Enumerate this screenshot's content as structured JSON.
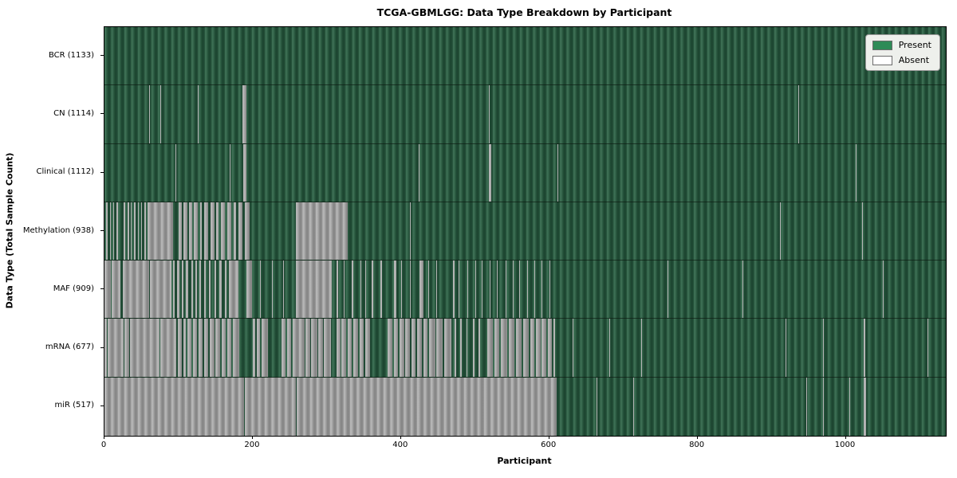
{
  "title": "TCGA-GBMLGG: Data Type Breakdown by Participant",
  "axes": {
    "xlabel": "Participant",
    "ylabel": "Data Type (Total Sample Count)",
    "x_ticks": [
      0,
      200,
      400,
      600,
      800,
      1000
    ],
    "x_max": 1135
  },
  "legend": {
    "entries": [
      {
        "label": "Present",
        "color": "#2e8b57"
      },
      {
        "label": "Absent",
        "color": "#ffffff"
      }
    ]
  },
  "colors": {
    "present_stripe_light": "#3c6e53",
    "present_stripe_dark": "#1d4631",
    "absent_stripe_light": "#b5b5b5",
    "absent_stripe_dark": "#878787",
    "plot_border": "#000000",
    "legend_bg": "#eef0ec"
  },
  "chart_data": {
    "type": "heatmap",
    "orientation": "rows = data types, columns = participants, green = present, white/gray = absent",
    "x_range": [
      0,
      1135
    ],
    "x_ticks": [
      0,
      200,
      400,
      600,
      800,
      1000
    ],
    "rows": [
      {
        "name": "BCR",
        "total": 1133,
        "label": "BCR (1133)",
        "absent_ranges": []
      },
      {
        "name": "CN",
        "total": 1114,
        "label": "CN (1114)",
        "absent_ranges": [
          [
            60,
            61
          ],
          [
            75,
            76
          ],
          [
            106,
            107
          ],
          [
            126,
            127
          ],
          [
            186,
            191
          ],
          [
            304,
            305
          ],
          [
            519,
            520
          ],
          [
            936,
            937
          ]
        ]
      },
      {
        "name": "Clinical",
        "total": 1112,
        "label": "Clinical (1112)",
        "absent_ranges": [
          [
            96,
            97
          ],
          [
            169,
            170
          ],
          [
            187,
            191
          ],
          [
            304,
            305
          ],
          [
            424,
            425
          ],
          [
            461,
            462
          ],
          [
            519,
            522
          ],
          [
            611,
            612
          ],
          [
            1013,
            1014
          ]
        ]
      },
      {
        "name": "Methylation",
        "total": 938,
        "label": "Methylation (938)",
        "absent_ranges": [
          [
            2,
            4
          ],
          [
            7,
            9
          ],
          [
            12,
            13
          ],
          [
            16,
            18
          ],
          [
            21,
            22
          ],
          [
            26,
            28
          ],
          [
            31,
            33
          ],
          [
            36,
            37
          ],
          [
            40,
            42
          ],
          [
            45,
            46
          ],
          [
            50,
            51
          ],
          [
            54,
            56
          ],
          [
            58,
            93
          ],
          [
            100,
            104
          ],
          [
            106,
            112
          ],
          [
            114,
            118
          ],
          [
            121,
            126
          ],
          [
            129,
            131
          ],
          [
            134,
            140
          ],
          [
            143,
            148
          ],
          [
            151,
            154
          ],
          [
            157,
            163
          ],
          [
            166,
            171
          ],
          [
            174,
            178
          ],
          [
            181,
            186
          ],
          [
            189,
            196
          ],
          [
            258,
            328
          ],
          [
            412,
            413
          ],
          [
            911,
            912
          ],
          [
            1022,
            1023
          ]
        ]
      },
      {
        "name": "MAF",
        "total": 909,
        "label": "MAF (909)",
        "absent_ranges": [
          [
            0,
            9
          ],
          [
            10,
            21
          ],
          [
            25,
            60
          ],
          [
            61,
            90
          ],
          [
            92,
            95
          ],
          [
            98,
            101
          ],
          [
            104,
            106
          ],
          [
            110,
            113
          ],
          [
            117,
            119
          ],
          [
            123,
            125
          ],
          [
            128,
            130
          ],
          [
            134,
            137
          ],
          [
            141,
            143
          ],
          [
            148,
            151
          ],
          [
            155,
            158
          ],
          [
            162,
            165
          ],
          [
            168,
            181
          ],
          [
            192,
            199
          ],
          [
            210,
            211
          ],
          [
            226,
            227
          ],
          [
            241,
            242
          ],
          [
            258,
            307
          ],
          [
            313,
            315
          ],
          [
            323,
            324
          ],
          [
            334,
            336
          ],
          [
            345,
            346
          ],
          [
            352,
            353
          ],
          [
            360,
            363
          ],
          [
            372,
            374
          ],
          [
            390,
            394
          ],
          [
            400,
            401
          ],
          [
            412,
            413
          ],
          [
            425,
            430
          ],
          [
            437,
            438
          ],
          [
            448,
            449
          ],
          [
            460,
            461
          ],
          [
            470,
            472
          ],
          [
            478,
            479
          ],
          [
            490,
            491
          ],
          [
            500,
            501
          ],
          [
            509,
            510
          ],
          [
            520,
            521
          ],
          [
            529,
            530
          ],
          [
            541,
            542
          ],
          [
            551,
            552
          ],
          [
            559,
            560
          ],
          [
            570,
            571
          ],
          [
            580,
            581
          ],
          [
            590,
            591
          ],
          [
            600,
            601
          ],
          [
            760,
            761
          ],
          [
            861,
            862
          ],
          [
            1050,
            1051
          ]
        ]
      },
      {
        "name": "mRNA",
        "total": 677,
        "label": "mRNA (677)",
        "absent_ranges": [
          [
            0,
            3
          ],
          [
            4,
            26
          ],
          [
            27,
            33
          ],
          [
            34,
            74
          ],
          [
            75,
            97
          ],
          [
            99,
            104
          ],
          [
            106,
            110
          ],
          [
            112,
            117
          ],
          [
            119,
            125
          ],
          [
            127,
            132
          ],
          [
            134,
            140
          ],
          [
            142,
            148
          ],
          [
            150,
            156
          ],
          [
            158,
            164
          ],
          [
            166,
            171
          ],
          [
            173,
            182
          ],
          [
            200,
            203
          ],
          [
            205,
            210
          ],
          [
            212,
            221
          ],
          [
            239,
            244
          ],
          [
            246,
            252
          ],
          [
            254,
            262
          ],
          [
            263,
            270
          ],
          [
            271,
            278
          ],
          [
            279,
            287
          ],
          [
            288,
            295
          ],
          [
            296,
            306
          ],
          [
            313,
            318
          ],
          [
            320,
            326
          ],
          [
            328,
            334
          ],
          [
            336,
            342
          ],
          [
            344,
            350
          ],
          [
            352,
            358
          ],
          [
            382,
            388
          ],
          [
            390,
            396
          ],
          [
            398,
            404
          ],
          [
            406,
            412
          ],
          [
            414,
            420
          ],
          [
            422,
            428
          ],
          [
            430,
            436
          ],
          [
            438,
            446
          ],
          [
            448,
            456
          ],
          [
            458,
            468
          ],
          [
            472,
            474
          ],
          [
            480,
            482
          ],
          [
            488,
            490
          ],
          [
            497,
            499
          ],
          [
            505,
            507
          ],
          [
            516,
            524
          ],
          [
            526,
            533
          ],
          [
            535,
            543
          ],
          [
            545,
            553
          ],
          [
            555,
            563
          ],
          [
            565,
            572
          ],
          [
            574,
            580
          ],
          [
            582,
            588
          ],
          [
            590,
            596
          ],
          [
            598,
            604
          ],
          [
            606,
            608
          ],
          [
            632,
            633
          ],
          [
            681,
            682
          ],
          [
            724,
            725
          ],
          [
            919,
            920
          ],
          [
            969,
            970
          ],
          [
            1024,
            1026
          ],
          [
            1110,
            1111
          ]
        ]
      },
      {
        "name": "miR",
        "total": 517,
        "label": "miR (517)",
        "absent_ranges": [
          [
            0,
            188
          ],
          [
            189,
            258
          ],
          [
            259,
            610
          ],
          [
            664,
            665
          ],
          [
            713,
            714
          ],
          [
            947,
            948
          ],
          [
            969,
            970
          ],
          [
            1005,
            1006
          ],
          [
            1024,
            1027
          ],
          [
            1113,
            1114
          ]
        ]
      }
    ]
  }
}
